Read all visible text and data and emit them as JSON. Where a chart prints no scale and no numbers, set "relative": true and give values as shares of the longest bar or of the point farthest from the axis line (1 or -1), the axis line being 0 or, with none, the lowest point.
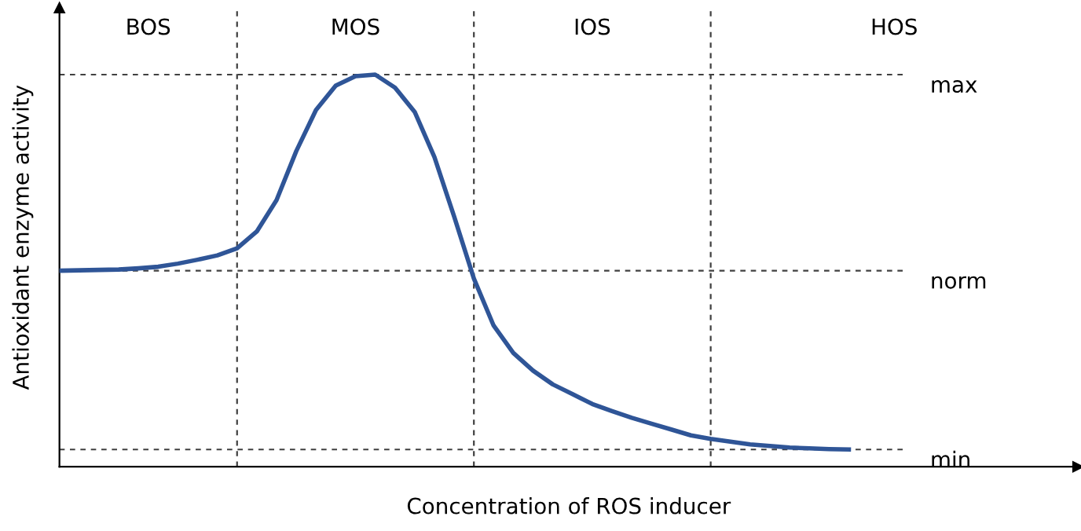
{
  "chart_data": {
    "type": "line",
    "xlabel": "Concentration of ROS inducer",
    "ylabel": "Antioxidant enzyme activity",
    "marker": "none",
    "line_style": "solid",
    "legend": false,
    "relative": true,
    "grid": true,
    "categories": [
      null,
      null,
      null,
      null,
      null,
      null,
      null,
      null,
      null,
      null,
      null,
      null,
      null,
      null,
      null,
      null,
      null,
      null,
      null,
      null,
      null,
      null,
      null,
      null,
      null,
      null,
      null,
      null,
      null,
      null,
      null,
      null,
      null,
      null,
      null,
      null,
      null,
      null,
      null,
      null,
      null
    ],
    "series": [
      {
        "color": "#2f5597",
        "values": [
          0.5,
          0.501,
          0.502,
          0.503,
          0.506,
          0.51,
          0.518,
          0.528,
          0.539,
          0.557,
          0.6,
          0.68,
          0.805,
          0.91,
          0.972,
          0.996,
          1.0,
          0.967,
          0.905,
          0.79,
          0.638,
          0.48,
          0.36,
          0.29,
          0.245,
          0.21,
          0.185,
          0.16,
          0.142,
          0.125,
          0.11,
          0.095,
          0.08,
          0.071,
          0.064,
          0.057,
          0.053,
          0.049,
          0.047,
          0.045,
          0.044
        ]
      }
    ],
    "annotations": [
      "BOS",
      "MOS",
      "IOS",
      "HOS",
      "max",
      "norm",
      "min"
    ]
  }
}
